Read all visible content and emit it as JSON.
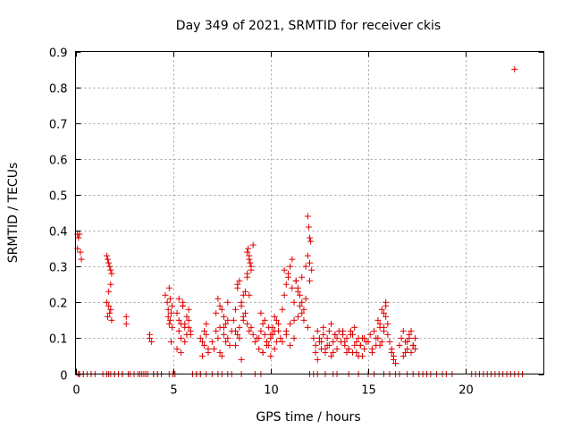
{
  "chart_data": {
    "type": "scatter",
    "title": "Day 349 of 2021, SRMTID for receiver ckis",
    "xlabel": "GPS time / hours",
    "ylabel": "SRMTID / TECUs",
    "xlim": [
      0,
      24
    ],
    "ylim": [
      0,
      0.9
    ],
    "xticks": [
      0,
      5,
      10,
      15,
      20
    ],
    "yticks": [
      0,
      0.1,
      0.2,
      0.3,
      0.4,
      0.5,
      0.6,
      0.7,
      0.8,
      0.9
    ],
    "ytick_labels": [
      "0",
      "0.1",
      "0.2",
      "0.3",
      "0.4",
      "0.5",
      "0.6",
      "0.7",
      "0.8",
      "0.9"
    ],
    "grid": true,
    "marker": "+",
    "color": "#e00000",
    "series": [
      {
        "name": "SRMTID",
        "x": [
          0.1,
          0.15,
          0.2,
          0.25,
          0.3,
          0.1,
          0.15,
          0.2,
          0.4,
          0.6,
          0.8,
          1.6,
          1.65,
          1.7,
          1.75,
          1.8,
          1.85,
          1.6,
          1.7,
          1.8,
          1.75,
          1.65,
          1.85,
          1.7,
          1.8,
          1.6,
          1.7,
          1.8,
          2.0,
          2.2,
          2.4,
          2.6,
          2.6,
          2.8,
          3.0,
          3.2,
          3.4,
          3.6,
          3.8,
          3.8,
          3.9,
          4.0,
          4.2,
          4.4,
          4.6,
          4.7,
          4.75,
          4.8,
          4.85,
          4.9,
          4.95,
          4.75,
          4.8,
          4.85,
          4.9,
          4.95,
          4.8,
          5.0,
          5.2,
          5.3,
          5.4,
          5.5,
          5.6,
          5.7,
          5.8,
          5.9,
          5.3,
          5.5,
          5.7,
          5.4,
          5.6,
          5.8,
          5.2,
          5.4,
          5.6,
          5.8,
          5.3,
          5.5,
          5.9,
          6.0,
          6.2,
          6.4,
          6.6,
          6.8,
          6.4,
          6.5,
          6.6,
          6.7,
          6.8,
          6.5,
          6.7,
          7.0,
          7.1,
          7.2,
          7.3,
          7.4,
          7.5,
          7.6,
          7.7,
          7.8,
          7.9,
          7.2,
          7.4,
          7.6,
          7.8,
          7.3,
          7.5,
          7.7,
          7.4,
          7.6,
          7.8,
          8.0,
          8.1,
          8.2,
          8.3,
          8.4,
          8.5,
          8.6,
          8.7,
          8.8,
          8.9,
          9.0,
          9.1,
          9.2,
          9.3,
          8.2,
          8.4,
          8.6,
          8.8,
          9.0,
          8.3,
          8.5,
          8.7,
          8.9,
          9.1,
          8.8,
          8.85,
          8.9,
          8.95,
          9.0,
          8.8,
          8.9,
          8.6,
          8.4,
          8.5,
          8.2,
          8.3,
          9.4,
          9.5,
          9.6,
          9.7,
          9.8,
          9.9,
          10.0,
          10.1,
          10.2,
          10.3,
          10.4,
          10.5,
          9.5,
          9.7,
          9.9,
          10.1,
          10.3,
          9.6,
          9.8,
          10.0,
          10.2,
          10.4,
          9.4,
          9.6,
          9.8,
          10.0,
          10.2,
          10.6,
          10.7,
          10.8,
          10.9,
          11.0,
          11.1,
          11.2,
          11.3,
          11.4,
          11.5,
          11.6,
          11.7,
          11.8,
          11.9,
          10.7,
          10.9,
          11.1,
          11.3,
          11.5,
          11.7,
          10.8,
          11.0,
          11.2,
          11.4,
          11.6,
          10.6,
          10.8,
          11.0,
          11.2,
          11.4,
          11.6,
          11.8,
          12.0,
          11.9,
          11.95,
          12.0,
          12.05,
          11.9,
          12.0,
          12.1,
          12.2,
          12.3,
          12.4,
          12.5,
          12.6,
          12.7,
          12.8,
          12.9,
          13.0,
          13.1,
          13.2,
          13.3,
          13.4,
          13.5,
          12.3,
          12.5,
          12.7,
          12.9,
          13.1,
          13.3,
          12.4,
          12.6,
          12.8,
          13.0,
          13.2,
          13.4,
          13.6,
          13.7,
          13.8,
          13.9,
          14.0,
          14.1,
          14.2,
          14.3,
          14.4,
          14.5,
          14.6,
          14.7,
          14.8,
          14.9,
          13.7,
          13.9,
          14.1,
          14.3,
          14.5,
          14.7,
          13.8,
          14.0,
          14.2,
          14.4,
          14.6,
          14.8,
          15.0,
          15.1,
          15.2,
          15.3,
          15.4,
          15.5,
          15.6,
          15.7,
          15.8,
          15.9,
          16.0,
          15.2,
          15.4,
          15.6,
          15.8,
          15.5,
          15.7,
          15.9,
          15.8,
          15.9,
          16.0,
          15.6,
          16.1,
          16.2,
          16.3,
          16.4,
          16.2,
          16.3,
          16.6,
          16.7,
          16.8,
          16.9,
          17.0,
          17.1,
          17.2,
          17.3,
          17.4,
          16.8,
          17.0,
          17.2,
          17.4,
          16.9,
          17.1,
          17.3,
          22.5
        ],
        "y": [
          0.39,
          0.38,
          0.39,
          0.34,
          0.32,
          0.35,
          0,
          0,
          0,
          0,
          0,
          0.33,
          0.32,
          0.31,
          0.3,
          0.29,
          0.28,
          0.2,
          0.19,
          0.18,
          0.17,
          0.16,
          0.15,
          0.23,
          0.25,
          0,
          0,
          0,
          0,
          0,
          0,
          0.16,
          0.14,
          0,
          0,
          0,
          0,
          0,
          0.1,
          0.11,
          0.09,
          0,
          0,
          0,
          0.22,
          0.2,
          0.18,
          0.24,
          0.21,
          0.17,
          0.19,
          0.16,
          0.14,
          0.15,
          0.09,
          0.13,
          0,
          0,
          0.17,
          0.15,
          0.14,
          0.19,
          0.13,
          0.16,
          0.18,
          0.12,
          0.21,
          0.2,
          0.11,
          0.1,
          0.09,
          0.15,
          0.07,
          0.06,
          0.14,
          0.13,
          0.12,
          0.19,
          0.11,
          0,
          0,
          0,
          0.08,
          0.07,
          0.1,
          0.09,
          0.12,
          0.14,
          0.06,
          0.05,
          0.11,
          0.09,
          0.07,
          0.12,
          0.1,
          0.06,
          0.05,
          0.13,
          0.09,
          0.15,
          0.08,
          0.17,
          0.19,
          0.16,
          0.2,
          0.21,
          0.18,
          0.14,
          0.13,
          0.11,
          0.1,
          0.12,
          0.15,
          0.18,
          0.24,
          0.26,
          0.2,
          0.22,
          0.17,
          0.14,
          0.12,
          0.13,
          0.11,
          0.09,
          0.1,
          0.08,
          0.1,
          0.16,
          0.28,
          0.3,
          0.25,
          0.19,
          0.23,
          0.32,
          0.36,
          0.34,
          0.35,
          0.33,
          0.31,
          0.29,
          0.27,
          0.22,
          0.15,
          0.13,
          0.04,
          0.12,
          0.11,
          0.1,
          0.12,
          0.14,
          0.11,
          0.09,
          0.08,
          0.1,
          0.13,
          0.07,
          0.15,
          0.12,
          0.1,
          0.17,
          0.15,
          0.13,
          0.11,
          0.09,
          0.06,
          0.08,
          0.05,
          0.12,
          0.14,
          0.07,
          0.06,
          0.09,
          0.11,
          0.16,
          0.18,
          0.22,
          0.25,
          0.28,
          0.3,
          0.24,
          0.2,
          0.26,
          0.23,
          0.19,
          0.17,
          0.15,
          0.21,
          0.13,
          0.29,
          0.27,
          0.32,
          0.26,
          0.22,
          0.18,
          0.12,
          0.14,
          0.1,
          0.16,
          0.2,
          0.09,
          0.11,
          0.08,
          0.15,
          0.24,
          0.27,
          0.3,
          0.26,
          0.44,
          0.41,
          0.38,
          0.37,
          0.33,
          0.31,
          0.29,
          0.1,
          0.08,
          0.12,
          0.09,
          0.07,
          0.11,
          0.06,
          0.1,
          0.08,
          0.05,
          0.09,
          0.11,
          0.07,
          0.12,
          0.06,
          0.1,
          0.13,
          0.08,
          0.14,
          0.11,
          0.04,
          0.09,
          0.07,
          0.12,
          0.06,
          0.1,
          0.09,
          0.12,
          0.08,
          0.1,
          0.07,
          0.11,
          0.06,
          0.13,
          0.09,
          0.05,
          0.08,
          0.1,
          0.07,
          0.09,
          0.11,
          0.06,
          0.12,
          0.08,
          0.1,
          0.05,
          0.09,
          0.07,
          0.11,
          0.06,
          0.08,
          0.1,
          0.09,
          0.11,
          0.07,
          0.12,
          0.08,
          0.1,
          0.14,
          0.09,
          0.13,
          0.16,
          0.11,
          0.06,
          0.1,
          0.08,
          0.12,
          0.15,
          0.18,
          0.2,
          0.17,
          0.19,
          0.14,
          0.13,
          0.09,
          0.07,
          0.04,
          0.03,
          0.06,
          0.05,
          0.08,
          0.1,
          0.12,
          0.09,
          0.07,
          0.11,
          0.06,
          0.08,
          0.1,
          0.05,
          0.09,
          0.12,
          0.07,
          0.06,
          0.1,
          0.08,
          0.85
        ]
      }
    ],
    "zero_markers_x": [
      0.2,
      0.4,
      0.8,
      1.0,
      1.4,
      2.0,
      2.4,
      2.7,
      3.0,
      3.3,
      3.5,
      3.7,
      4.0,
      4.2,
      4.4,
      5.0,
      5.1,
      6.2,
      6.4,
      6.7,
      7.0,
      7.3,
      7.5,
      7.8,
      8.0,
      8.5,
      9.2,
      9.5,
      12.0,
      12.2,
      12.4,
      12.8,
      13.2,
      13.4,
      14.0,
      14.5,
      15.0,
      15.3,
      15.8,
      16.1,
      16.4,
      16.6,
      17.0,
      17.3,
      17.6,
      17.8,
      18.0,
      18.2,
      18.5,
      18.8,
      19.0,
      19.3,
      20.3,
      20.5,
      20.7,
      20.9,
      21.1,
      21.3,
      21.5,
      21.7,
      21.9,
      22.1,
      22.3,
      22.5,
      22.7,
      22.9
    ]
  }
}
